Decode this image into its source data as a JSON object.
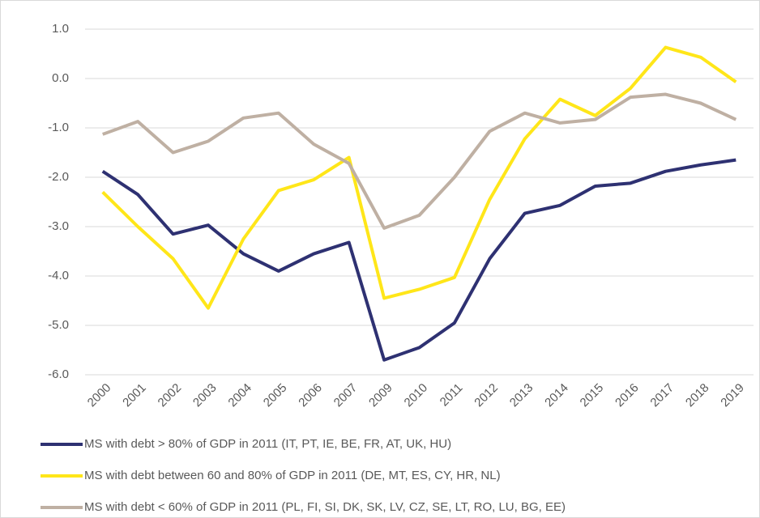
{
  "chart_data": {
    "type": "line",
    "categories": [
      "2000",
      "2001",
      "2002",
      "2003",
      "2004",
      "2005",
      "2006",
      "2007",
      "2009",
      "2010",
      "2011",
      "2012",
      "2013",
      "2014",
      "2015",
      "2016",
      "2017",
      "2018",
      "2019"
    ],
    "series": [
      {
        "name": "MS with debt > 80% of GDP in 2011 (IT, PT, IE, BE, FR, AT, UK, HU)",
        "color": "#2e3172",
        "values": [
          -1.88,
          -2.35,
          -3.15,
          -2.97,
          -3.55,
          -3.9,
          -3.55,
          -3.32,
          -5.7,
          -5.45,
          -4.95,
          -3.65,
          -2.73,
          -2.57,
          -2.18,
          -2.12,
          -1.88,
          -1.75,
          -1.65
        ]
      },
      {
        "name": "MS with debt between 60 and 80% of GDP in 2011 (DE, MT, ES, CY, HR, NL)",
        "color": "#ffe619",
        "values": [
          -2.3,
          -3.0,
          -3.65,
          -4.65,
          -3.25,
          -2.27,
          -2.05,
          -1.6,
          -4.45,
          -4.27,
          -4.03,
          -2.45,
          -1.22,
          -0.42,
          -0.75,
          -0.2,
          0.63,
          0.43,
          -0.07
        ]
      },
      {
        "name": "MS with debt < 60% of GDP in 2011 (PL, FI, SI, DK, SK, LV, CZ, SE, LT, RO, LU, BG, EE)",
        "color": "#bfb0a3",
        "values": [
          -1.13,
          -0.87,
          -1.5,
          -1.27,
          -0.8,
          -0.7,
          -1.33,
          -1.72,
          -3.03,
          -2.77,
          -2.0,
          -1.07,
          -0.7,
          -0.9,
          -0.83,
          -0.38,
          -0.32,
          -0.5,
          -0.83
        ]
      }
    ],
    "ylim": [
      -6,
      1
    ],
    "yticks": [
      {
        "value": 1,
        "label": "1.0"
      },
      {
        "value": 0,
        "label": "0.0"
      },
      {
        "value": -1,
        "label": "-1.0"
      },
      {
        "value": -2,
        "label": "-2.0"
      },
      {
        "value": -3,
        "label": "-3.0"
      },
      {
        "value": -4,
        "label": "-4.0"
      },
      {
        "value": -5,
        "label": "-5.0"
      },
      {
        "value": -6,
        "label": "-6.0"
      }
    ],
    "grid": true,
    "legend": "bottom"
  }
}
